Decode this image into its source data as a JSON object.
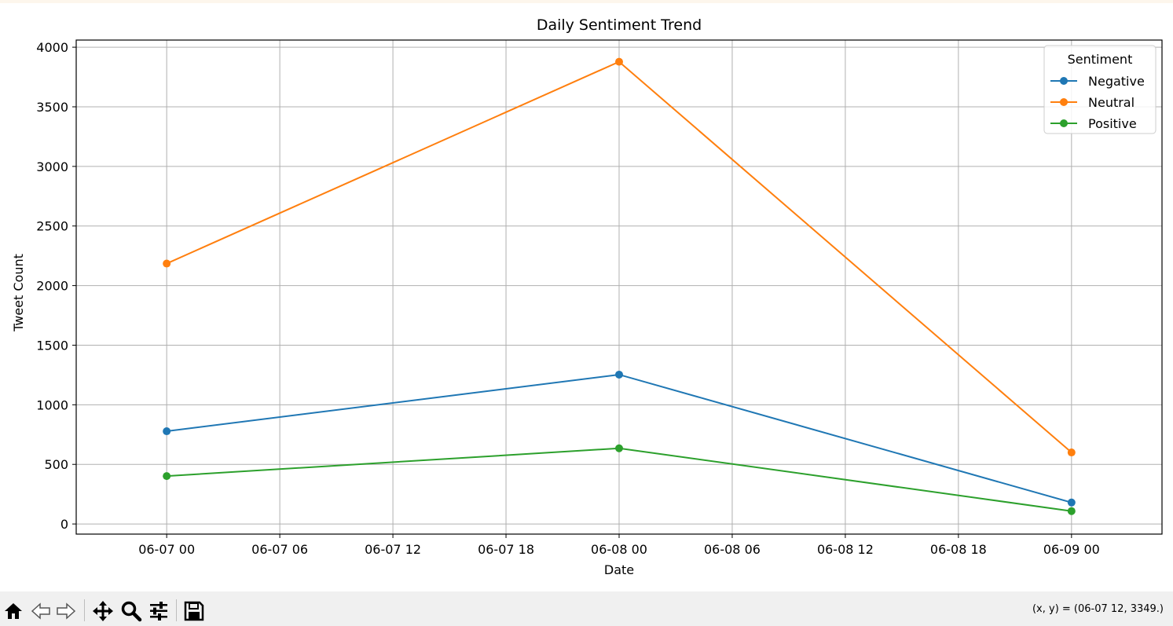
{
  "chart_data": {
    "type": "line",
    "title": "Daily Sentiment Trend",
    "xlabel": "Date",
    "ylabel": "Tweet Count",
    "x": [
      "06-07 00",
      "06-08 00",
      "06-09 00"
    ],
    "x_ticks": [
      "06-07 00",
      "06-07 06",
      "06-07 12",
      "06-07 18",
      "06-08 00",
      "06-08 06",
      "06-08 12",
      "06-08 18",
      "06-09 00"
    ],
    "y_ticks": [
      0,
      500,
      1000,
      1500,
      2000,
      2500,
      3000,
      3500,
      4000
    ],
    "xlim_hours": [
      -4.8,
      52.8
    ],
    "ylim": [
      -85,
      4060
    ],
    "grid": true,
    "legend": {
      "title": "Sentiment",
      "position": "top-right"
    },
    "series": [
      {
        "name": "Negative",
        "color": "#1f77b4",
        "values": [
          778,
          1253,
          180
        ]
      },
      {
        "name": "Neutral",
        "color": "#ff7f0e",
        "values": [
          2185,
          3878,
          600
        ]
      },
      {
        "name": "Positive",
        "color": "#2ca02c",
        "values": [
          402,
          635,
          108
        ]
      }
    ]
  },
  "toolbar": {
    "buttons": [
      "home-icon",
      "back-icon",
      "forward-icon",
      "pan-icon",
      "zoom-icon",
      "configure-icon",
      "save-icon"
    ],
    "coords_text": "(x, y) = (06-07 12, 3349.)"
  }
}
